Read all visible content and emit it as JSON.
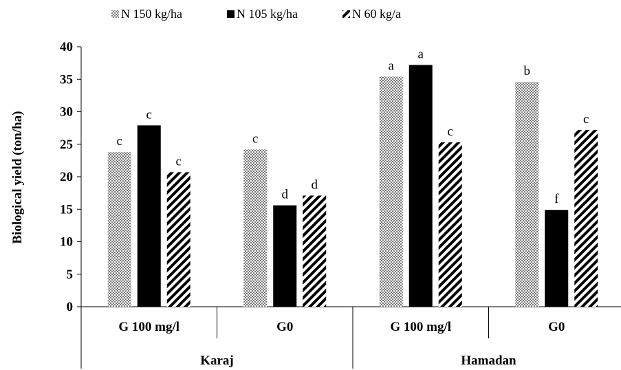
{
  "chart_data": {
    "type": "bar",
    "ylabel": "Biological yield (ton/ha)",
    "ylim": [
      0,
      40
    ],
    "yticks": [
      0,
      5,
      10,
      15,
      20,
      25,
      30,
      35,
      40
    ],
    "grid": false,
    "legend_position": "top",
    "groups": [
      {
        "name": "Karaj",
        "categories": [
          "G 100 mg/l",
          "G0"
        ]
      },
      {
        "name": "Hamadan",
        "categories": [
          "G 100 mg/l",
          "G0"
        ]
      }
    ],
    "categories": [
      "G 100 mg/l",
      "G0",
      "G 100 mg/l",
      "G0"
    ],
    "series": [
      {
        "name": "N 150 kg/ha",
        "pattern": "dotted",
        "color": "#8c8c8c",
        "values": [
          23.8,
          24.2,
          35.4,
          34.6
        ],
        "labels": [
          "c",
          "c",
          "a",
          "b"
        ]
      },
      {
        "name": "N 105 kg/ha",
        "pattern": "solid",
        "color": "#000000",
        "values": [
          27.9,
          15.6,
          37.2,
          14.9
        ],
        "labels": [
          "c",
          "d",
          "a",
          "f"
        ]
      },
      {
        "name": "N 60 kg/a",
        "pattern": "diagonal",
        "color": "#000000",
        "values": [
          20.7,
          17.1,
          25.3,
          27.2
        ],
        "labels": [
          "c",
          "d",
          "c",
          "c"
        ]
      }
    ]
  }
}
